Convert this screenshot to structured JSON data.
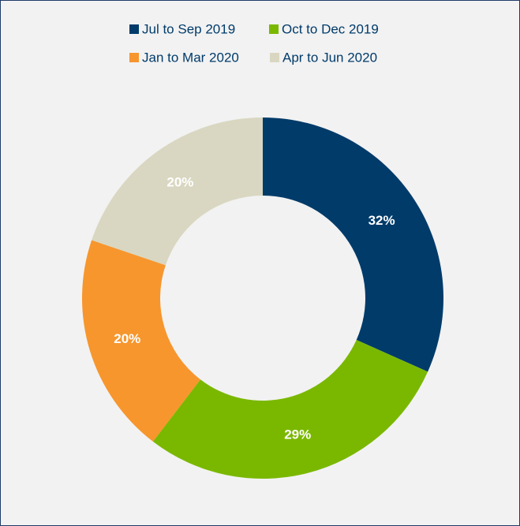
{
  "chart_data": {
    "type": "donut",
    "categories": [
      "Jul to Sep 2019",
      "Oct to Dec 2019",
      "Jan to Mar 2020",
      "Apr to Jun 2020"
    ],
    "values": [
      32,
      29,
      20,
      20
    ],
    "value_labels": [
      "32%",
      "29%",
      "20%",
      "20%"
    ],
    "colors": [
      "#003b6a",
      "#7ab800",
      "#f7962d",
      "#d9d7c1"
    ],
    "legend": "top"
  }
}
